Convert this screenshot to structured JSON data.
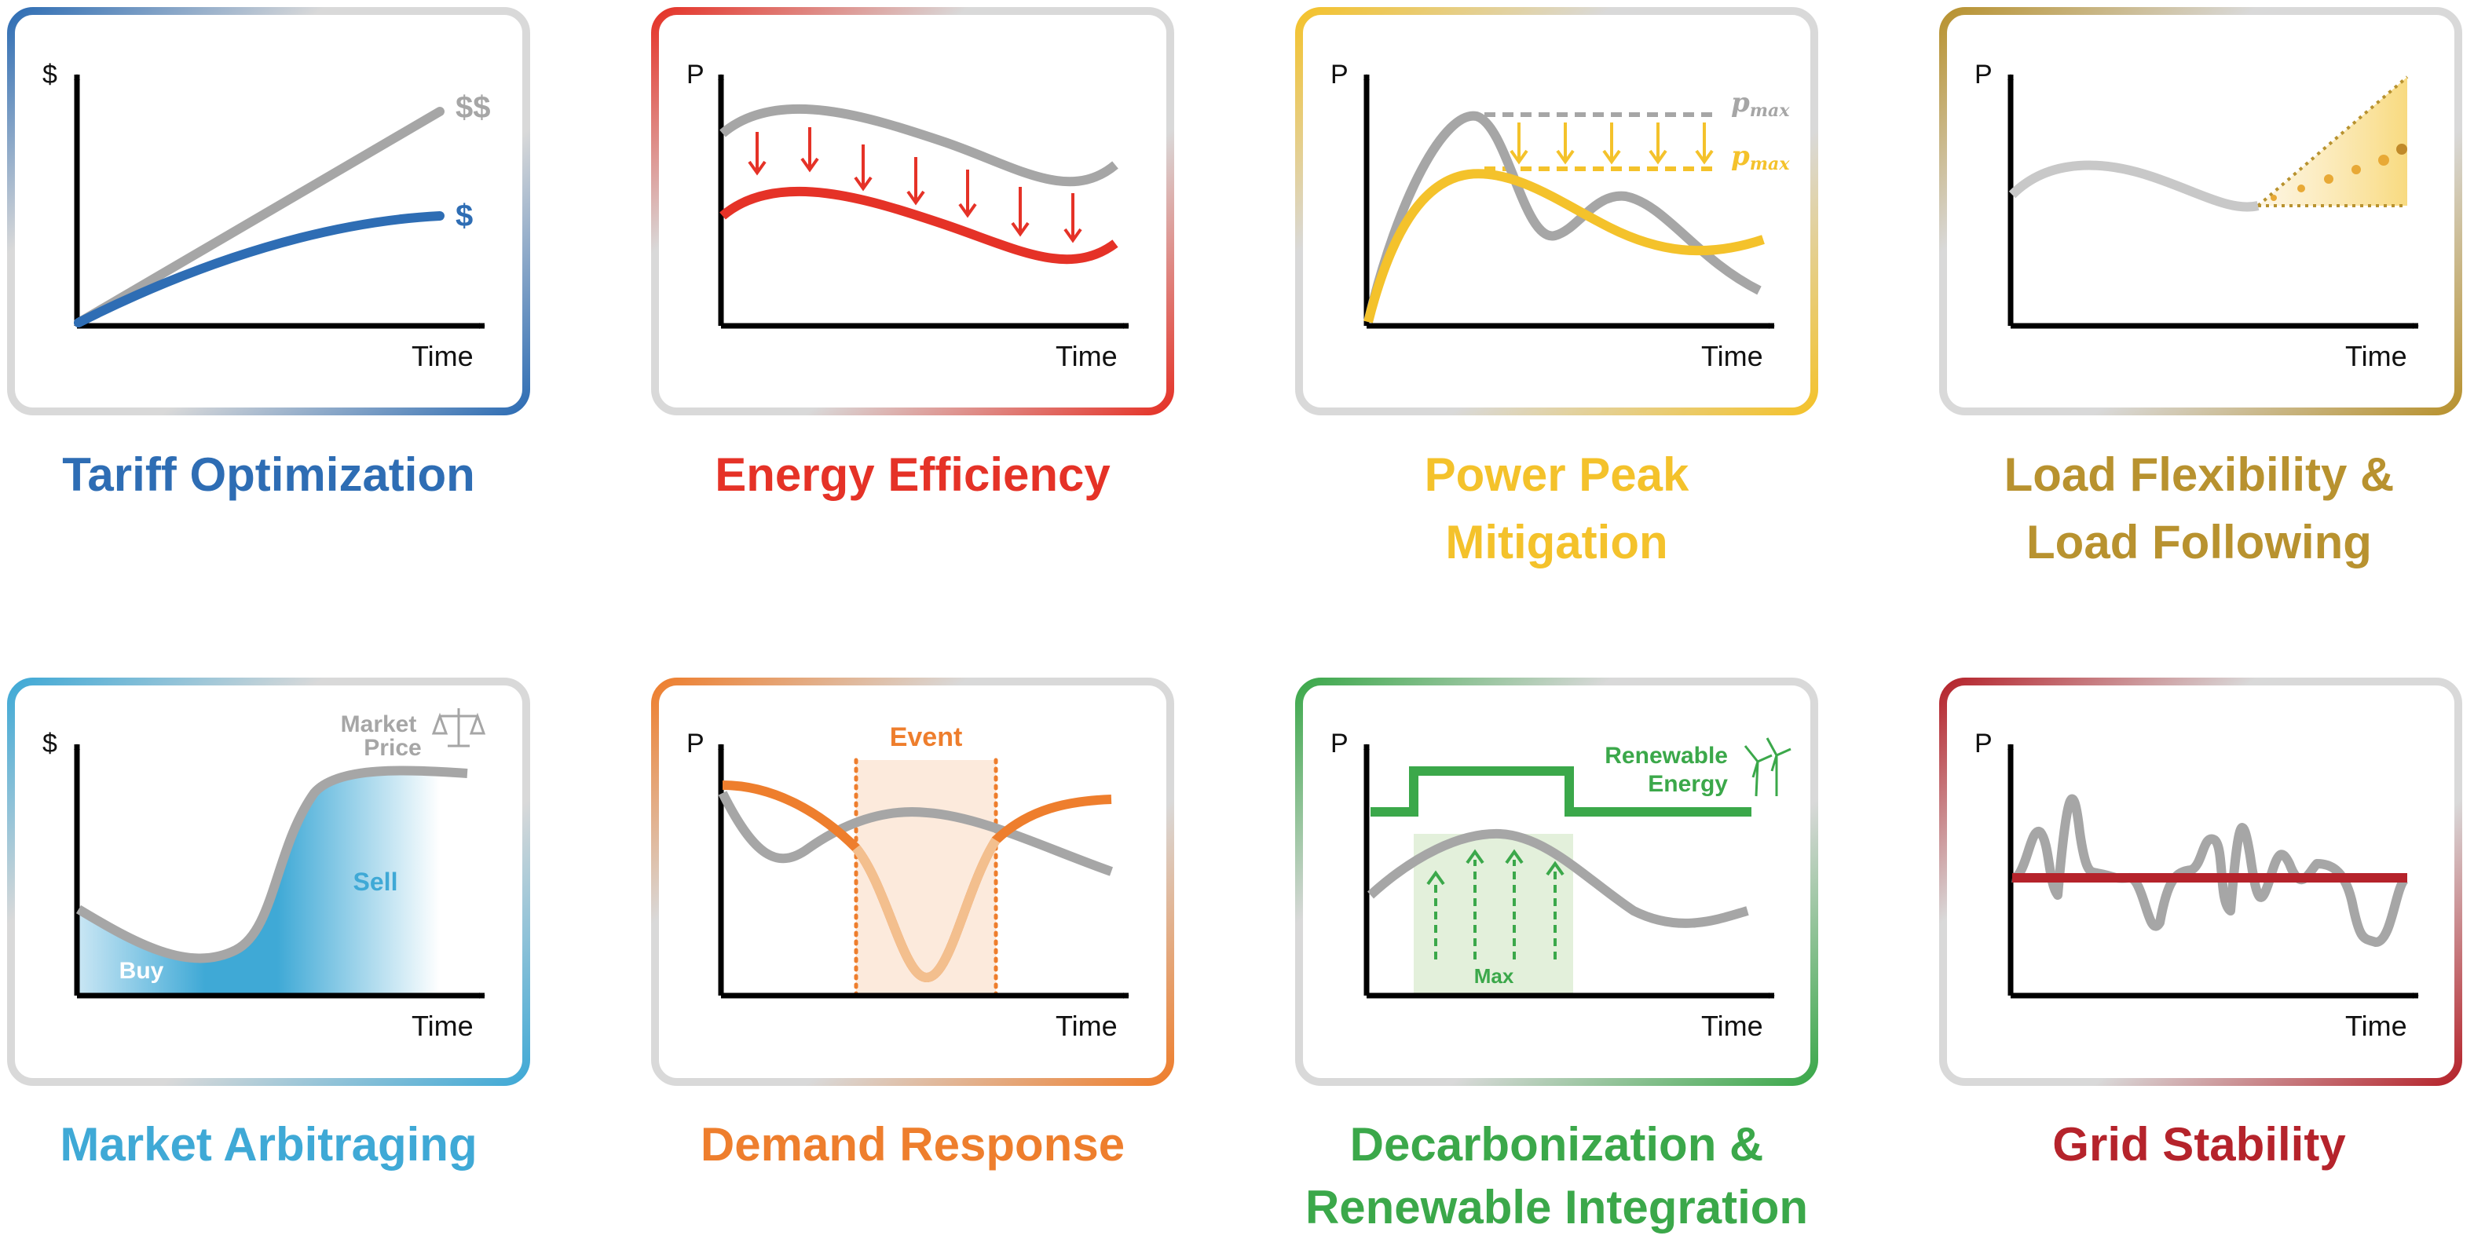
{
  "panels": [
    {
      "title": [
        "Tariff Optimization"
      ],
      "y_label": "$",
      "x_label": "Time",
      "color": "#2E6DB4",
      "series": [
        {
          "name": "$$",
          "color": "#A6A6A6"
        },
        {
          "name": "$",
          "color": "#2E6DB4"
        }
      ]
    },
    {
      "title": [
        "Energy Efficiency"
      ],
      "y_label": "P",
      "x_label": "Time",
      "color": "#E53227"
    },
    {
      "title": [
        "Power Peak",
        "Mitigation"
      ],
      "y_label": "P",
      "x_label": "Time",
      "color": "#F4C22B",
      "pmax_base": "p",
      "pmax_sub": "max"
    },
    {
      "title": [
        "Load Flexibility &",
        "Load Following"
      ],
      "y_label": "P",
      "x_label": "Time",
      "color": "#B8922F"
    },
    {
      "title": [
        "Market Arbitraging"
      ],
      "y_label": "$",
      "x_label": "Time",
      "color": "#3FA9D6",
      "labels": {
        "market": [
          "Market",
          "Price"
        ],
        "sell": "Sell",
        "buy": "Buy"
      },
      "price_color": "#A6A6A6"
    },
    {
      "title": [
        "Demand Response"
      ],
      "y_label": "P",
      "x_label": "Time",
      "color": "#EE7E2D",
      "labels": {
        "event": "Event"
      }
    },
    {
      "title": [
        "Decarbonization &",
        "Renewable Integration"
      ],
      "y_label": "P",
      "x_label": "Time",
      "color": "#3BA84A",
      "labels": {
        "renewable": [
          "Renewable",
          "Energy"
        ],
        "max": "Max"
      }
    },
    {
      "title": [
        "Grid Stability"
      ],
      "y_label": "P",
      "x_label": "Time",
      "color": "#B5232B"
    }
  ],
  "colors": {
    "gray_curve": "#A6A6A6",
    "frame_gray": "#D9D9D9",
    "axis": "#000000"
  }
}
